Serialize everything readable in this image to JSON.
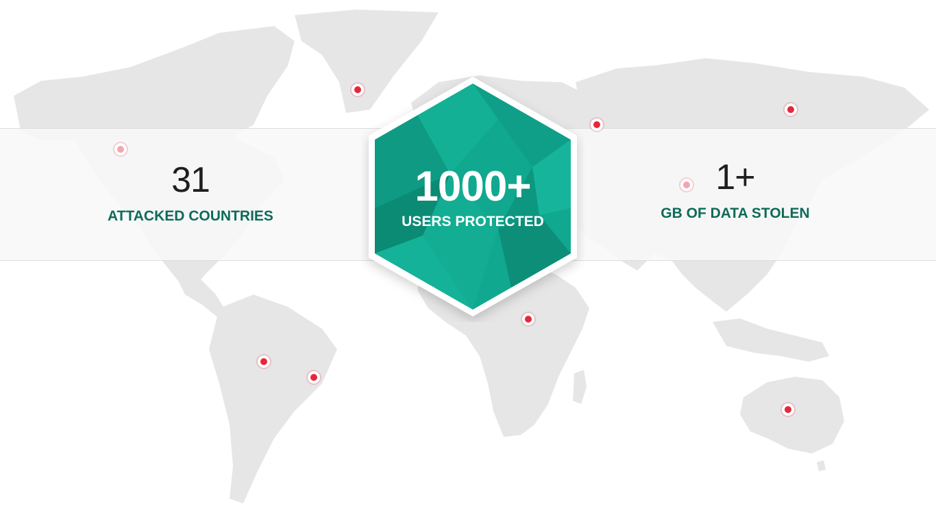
{
  "colors": {
    "map_land": "#e6e6e6",
    "band": "#f8f8f8",
    "label_green": "#0d6b58",
    "hex_teal": "#10a88f",
    "pin_red": "#e8263b",
    "number_dark": "#1f1f1f"
  },
  "stats": {
    "left": {
      "number": "31",
      "label": "ATTACKED COUNTRIES"
    },
    "center": {
      "number": "1000+",
      "label": "USERS PROTECTED"
    },
    "right": {
      "number": "1+",
      "label": "GB OF DATA STOLEN"
    }
  },
  "icons": {
    "map": "world-map",
    "pin": "location-pin-icon"
  }
}
